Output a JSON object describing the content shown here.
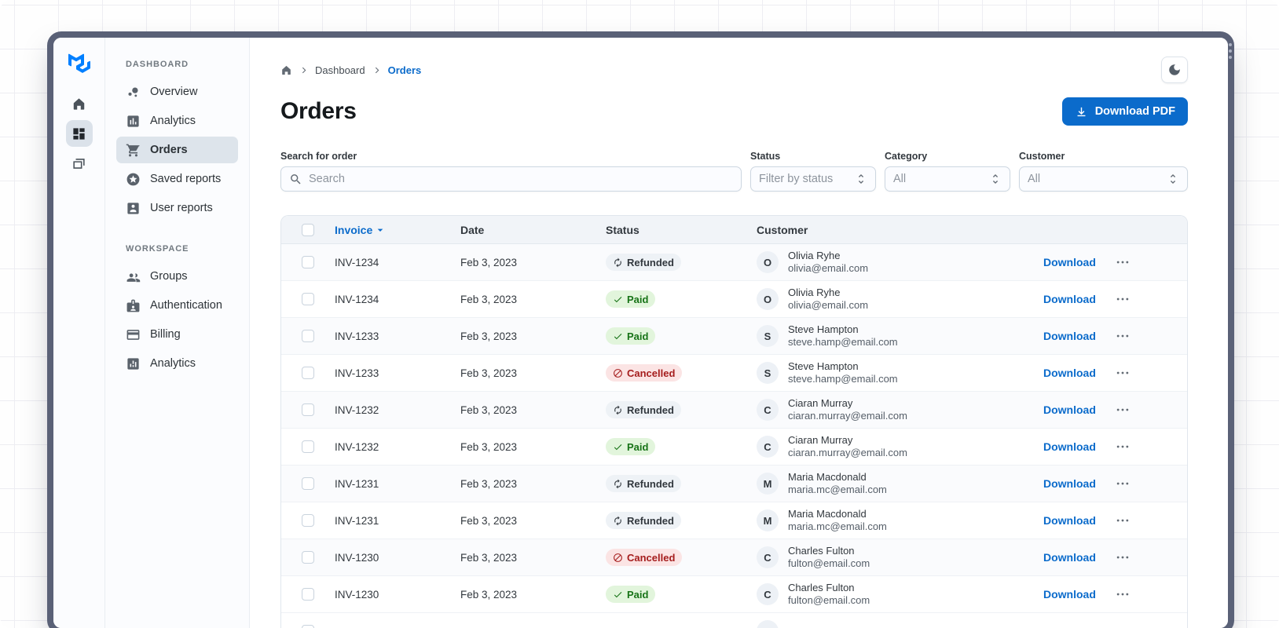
{
  "colors": {
    "primary": "#0b6bcb",
    "window_frame": "#5a6177",
    "sidebar_bg": "#fbfcfe",
    "selected_nav_bg": "#dde4eb",
    "table_header_bg": "#f1f4f8",
    "chip_neutral_bg": "#eef2f6",
    "chip_success_bg": "#e2f5dc",
    "chip_success_text": "#177317",
    "chip_danger_bg": "#fbe4e4",
    "chip_danger_text": "#a51d1d"
  },
  "rail": {
    "logo_icon": "mui-logo-icon",
    "items": [
      {
        "icon": "home-icon",
        "selected": false
      },
      {
        "icon": "dashboard-icon",
        "selected": true
      },
      {
        "icon": "layers-icon",
        "selected": false
      }
    ]
  },
  "sidebar": {
    "sections": [
      {
        "heading": "DASHBOARD",
        "items": [
          {
            "icon": "bubble-chart-icon",
            "label": "Overview",
            "selected": false
          },
          {
            "icon": "bar-chart-icon",
            "label": "Analytics",
            "selected": false
          },
          {
            "icon": "cart-icon",
            "label": "Orders",
            "selected": true
          },
          {
            "icon": "star-circle-icon",
            "label": "Saved reports",
            "selected": false
          },
          {
            "icon": "person-card-icon",
            "label": "User reports",
            "selected": false
          }
        ]
      },
      {
        "heading": "WORKSPACE",
        "items": [
          {
            "icon": "groups-icon",
            "label": "Groups",
            "selected": false
          },
          {
            "icon": "badge-icon",
            "label": "Authentication",
            "selected": false
          },
          {
            "icon": "credit-card-icon",
            "label": "Billing",
            "selected": false
          },
          {
            "icon": "analytics-icon",
            "label": "Analytics",
            "selected": false
          }
        ]
      }
    ]
  },
  "breadcrumb": {
    "home_icon": "home-icon",
    "items": [
      "Dashboard",
      "Orders"
    ]
  },
  "page": {
    "title": "Orders",
    "download_pdf_label": "Download PDF"
  },
  "theme_toggle_icon": "moon-icon",
  "filters": {
    "search_label": "Search for order",
    "search_placeholder": "Search",
    "selects": [
      {
        "label": "Status",
        "value": "Filter by status"
      },
      {
        "label": "Category",
        "value": "All"
      },
      {
        "label": "Customer",
        "value": "All"
      }
    ]
  },
  "table": {
    "columns": {
      "invoice": "Invoice",
      "date": "Date",
      "status": "Status",
      "customer": "Customer"
    },
    "sort_icon": "caret-down-icon",
    "row_action_label": "Download",
    "row_menu_icon": "ellipsis-icon",
    "rows": [
      {
        "invoice": "INV-1234",
        "date": "Feb 3, 2023",
        "status": "Refunded",
        "status_type": "neutral",
        "status_icon": "autorenew-icon",
        "initial": "O",
        "name": "Olivia Ryhe",
        "email": "olivia@email.com"
      },
      {
        "invoice": "INV-1234",
        "date": "Feb 3, 2023",
        "status": "Paid",
        "status_type": "success",
        "status_icon": "check-icon",
        "initial": "O",
        "name": "Olivia Ryhe",
        "email": "olivia@email.com"
      },
      {
        "invoice": "INV-1233",
        "date": "Feb 3, 2023",
        "status": "Paid",
        "status_type": "success",
        "status_icon": "check-icon",
        "initial": "S",
        "name": "Steve Hampton",
        "email": "steve.hamp@email.com"
      },
      {
        "invoice": "INV-1233",
        "date": "Feb 3, 2023",
        "status": "Cancelled",
        "status_type": "danger",
        "status_icon": "block-icon",
        "initial": "S",
        "name": "Steve Hampton",
        "email": "steve.hamp@email.com"
      },
      {
        "invoice": "INV-1232",
        "date": "Feb 3, 2023",
        "status": "Refunded",
        "status_type": "neutral",
        "status_icon": "autorenew-icon",
        "initial": "C",
        "name": "Ciaran Murray",
        "email": "ciaran.murray@email.com"
      },
      {
        "invoice": "INV-1232",
        "date": "Feb 3, 2023",
        "status": "Paid",
        "status_type": "success",
        "status_icon": "check-icon",
        "initial": "C",
        "name": "Ciaran Murray",
        "email": "ciaran.murray@email.com"
      },
      {
        "invoice": "INV-1231",
        "date": "Feb 3, 2023",
        "status": "Refunded",
        "status_type": "neutral",
        "status_icon": "autorenew-icon",
        "initial": "M",
        "name": "Maria Macdonald",
        "email": "maria.mc@email.com"
      },
      {
        "invoice": "INV-1231",
        "date": "Feb 3, 2023",
        "status": "Refunded",
        "status_type": "neutral",
        "status_icon": "autorenew-icon",
        "initial": "M",
        "name": "Maria Macdonald",
        "email": "maria.mc@email.com"
      },
      {
        "invoice": "INV-1230",
        "date": "Feb 3, 2023",
        "status": "Cancelled",
        "status_type": "danger",
        "status_icon": "block-icon",
        "initial": "C",
        "name": "Charles Fulton",
        "email": "fulton@email.com"
      },
      {
        "invoice": "INV-1230",
        "date": "Feb 3, 2023",
        "status": "Paid",
        "status_type": "success",
        "status_icon": "check-icon",
        "initial": "C",
        "name": "Charles Fulton",
        "email": "fulton@email.com"
      }
    ]
  }
}
